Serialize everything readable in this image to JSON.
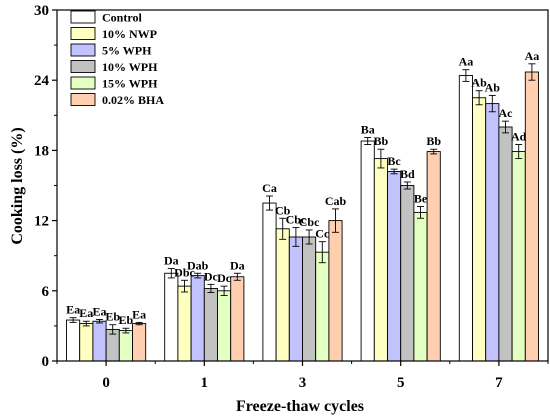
{
  "chart_data": {
    "type": "bar",
    "xlabel": "Freeze-thaw cycles",
    "ylabel": "Cooking loss (%)",
    "categories": [
      "0",
      "1",
      "3",
      "5",
      "7"
    ],
    "ylim": [
      0,
      30
    ],
    "yticks": [
      0,
      6,
      12,
      18,
      24,
      30
    ],
    "grid": false,
    "legend_position": "top-left",
    "series": [
      {
        "name": "Control",
        "color": "#ffffff",
        "values": [
          3.5,
          7.5,
          13.5,
          18.8,
          24.4
        ],
        "errors": [
          0.2,
          0.4,
          0.6,
          0.3,
          0.5
        ],
        "labels": [
          "Ea",
          "Da",
          "Ca",
          "Ba",
          "Aa"
        ]
      },
      {
        "name": "10% NWP",
        "color": "#ffffc2",
        "values": [
          3.2,
          6.4,
          11.3,
          17.3,
          22.5
        ],
        "errors": [
          0.2,
          0.5,
          0.9,
          0.8,
          0.6
        ],
        "labels": [
          "Ea",
          "Dbc",
          "Cb",
          "Bb",
          "Ab"
        ]
      },
      {
        "name": "5% WPH",
        "color": "#c2c2ff",
        "values": [
          3.4,
          7.3,
          10.6,
          16.2,
          22.0
        ],
        "errors": [
          0.15,
          0.2,
          0.8,
          0.2,
          0.7
        ],
        "labels": [
          "Ea",
          "Dab",
          "Cbc",
          "Bc",
          "Ab"
        ]
      },
      {
        "name": "10% WPH",
        "color": "#c2c2c2",
        "values": [
          2.7,
          6.2,
          10.6,
          15.0,
          20.0
        ],
        "errors": [
          0.4,
          0.35,
          0.6,
          0.3,
          0.5
        ],
        "labels": [
          "Eb",
          "Dc",
          "Cbc",
          "Bd",
          "Ac"
        ]
      },
      {
        "name": "15% WPH",
        "color": "#e4ffc2",
        "values": [
          2.6,
          6.0,
          9.3,
          12.7,
          17.9
        ],
        "errors": [
          0.2,
          0.4,
          0.9,
          0.5,
          0.6
        ],
        "labels": [
          "Eb",
          "Dc",
          "Cc",
          "Be",
          "Ad"
        ]
      },
      {
        "name": "0.02% BHA",
        "color": "#ffcfb0",
        "values": [
          3.2,
          7.2,
          12.0,
          17.9,
          24.7
        ],
        "errors": [
          0.1,
          0.3,
          1.0,
          0.2,
          0.7
        ],
        "labels": [
          "Ea",
          "Da",
          "Cab",
          "Bb",
          "Aa"
        ]
      }
    ]
  }
}
